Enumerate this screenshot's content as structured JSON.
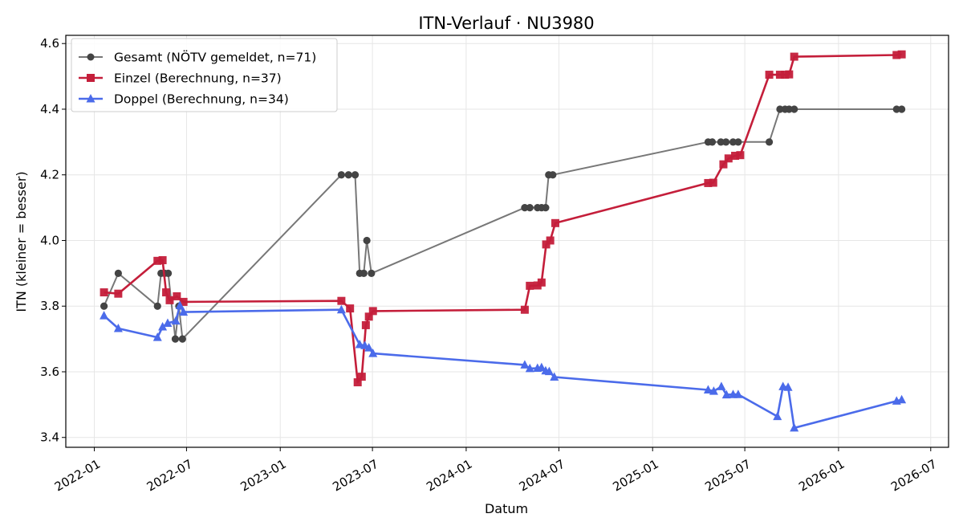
{
  "chart_data": {
    "type": "line",
    "title": "ITN-Verlauf · NU3980",
    "xlabel": "Datum",
    "ylabel": "ITN  (kleiner = besser)",
    "xlim": [
      "2021-11-06",
      "2026-08-05"
    ],
    "ylim": [
      3.37,
      4.625
    ],
    "grid": true,
    "legend_position": "top-left",
    "x_ticks": [
      "2022-01",
      "2022-07",
      "2023-01",
      "2023-07",
      "2024-01",
      "2024-07",
      "2025-01",
      "2025-07",
      "2026-01",
      "2026-07"
    ],
    "y_ticks": [
      "3.4",
      "3.6",
      "3.8",
      "4.0",
      "4.2",
      "4.4",
      "4.6"
    ],
    "series": [
      {
        "name": "Gesamt (NÖTV gemeldet, n=71)",
        "color": "#777777",
        "marker_color": "#444444",
        "marker": "circle",
        "points": [
          [
            "2022-01-20",
            3.8
          ],
          [
            "2022-02-17",
            3.9
          ],
          [
            "2022-05-05",
            3.8
          ],
          [
            "2022-05-12",
            3.9
          ],
          [
            "2022-05-19",
            3.9
          ],
          [
            "2022-05-26",
            3.9
          ],
          [
            "2022-06-09",
            3.7
          ],
          [
            "2022-06-16",
            3.8
          ],
          [
            "2022-06-23",
            3.7
          ],
          [
            "2023-05-01",
            4.2
          ],
          [
            "2023-05-15",
            4.2
          ],
          [
            "2023-05-28",
            4.2
          ],
          [
            "2023-06-06",
            3.9
          ],
          [
            "2023-06-14",
            3.9
          ],
          [
            "2023-06-20",
            4.0
          ],
          [
            "2023-06-29",
            3.9
          ],
          [
            "2024-04-25",
            4.1
          ],
          [
            "2024-05-05",
            4.1
          ],
          [
            "2024-05-20",
            4.1
          ],
          [
            "2024-05-28",
            4.1
          ],
          [
            "2024-06-05",
            4.1
          ],
          [
            "2024-06-11",
            4.2
          ],
          [
            "2024-06-19",
            4.2
          ],
          [
            "2025-04-20",
            4.3
          ],
          [
            "2025-04-28",
            4.3
          ],
          [
            "2025-05-15",
            4.3
          ],
          [
            "2025-05-25",
            4.3
          ],
          [
            "2025-06-08",
            4.3
          ],
          [
            "2025-06-18",
            4.3
          ],
          [
            "2025-08-18",
            4.3
          ],
          [
            "2025-09-08",
            4.4
          ],
          [
            "2025-09-18",
            4.4
          ],
          [
            "2025-09-26",
            4.4
          ],
          [
            "2025-10-06",
            4.4
          ],
          [
            "2026-04-25",
            4.4
          ],
          [
            "2026-05-05",
            4.4
          ]
        ]
      },
      {
        "name": "Einzel (Berechnung, n=37)",
        "color": "#C41E3A",
        "marker": "square",
        "points": [
          [
            "2022-01-20",
            3.842
          ],
          [
            "2022-02-17",
            3.838
          ],
          [
            "2022-05-05",
            3.938
          ],
          [
            "2022-05-15",
            3.94
          ],
          [
            "2022-05-22",
            3.842
          ],
          [
            "2022-05-29",
            3.818
          ],
          [
            "2022-06-12",
            3.83
          ],
          [
            "2022-06-25",
            3.813
          ],
          [
            "2023-05-01",
            3.816
          ],
          [
            "2023-05-18",
            3.793
          ],
          [
            "2023-06-02",
            3.568
          ],
          [
            "2023-06-10",
            3.585
          ],
          [
            "2023-06-18",
            3.742
          ],
          [
            "2023-06-24",
            3.768
          ],
          [
            "2023-07-02",
            3.785
          ],
          [
            "2024-04-25",
            3.789
          ],
          [
            "2024-05-05",
            3.862
          ],
          [
            "2024-05-20",
            3.863
          ],
          [
            "2024-05-28",
            3.872
          ],
          [
            "2024-06-06",
            3.988
          ],
          [
            "2024-06-14",
            4.0
          ],
          [
            "2024-06-24",
            4.053
          ],
          [
            "2025-04-20",
            4.175
          ],
          [
            "2025-04-30",
            4.176
          ],
          [
            "2025-05-20",
            4.232
          ],
          [
            "2025-05-30",
            4.25
          ],
          [
            "2025-06-12",
            4.258
          ],
          [
            "2025-06-22",
            4.26
          ],
          [
            "2025-08-18",
            4.505
          ],
          [
            "2025-09-08",
            4.505
          ],
          [
            "2025-09-18",
            4.505
          ],
          [
            "2025-09-26",
            4.506
          ],
          [
            "2025-10-06",
            4.56
          ],
          [
            "2026-04-25",
            4.565
          ],
          [
            "2026-05-05",
            4.567
          ]
        ]
      },
      {
        "name": "Doppel (Berechnung, n=34)",
        "color": "#4B6BEA",
        "marker": "triangle",
        "points": [
          [
            "2022-01-20",
            3.771
          ],
          [
            "2022-02-17",
            3.732
          ],
          [
            "2022-05-05",
            3.705
          ],
          [
            "2022-05-15",
            3.737
          ],
          [
            "2022-05-25",
            3.748
          ],
          [
            "2022-06-10",
            3.755
          ],
          [
            "2022-06-18",
            3.802
          ],
          [
            "2022-06-25",
            3.782
          ],
          [
            "2023-05-01",
            3.789
          ],
          [
            "2023-06-06",
            3.683
          ],
          [
            "2023-06-16",
            3.68
          ],
          [
            "2023-06-24",
            3.673
          ],
          [
            "2023-07-02",
            3.656
          ],
          [
            "2024-04-25",
            3.621
          ],
          [
            "2024-05-05",
            3.61
          ],
          [
            "2024-05-20",
            3.611
          ],
          [
            "2024-05-28",
            3.613
          ],
          [
            "2024-06-05",
            3.603
          ],
          [
            "2024-06-12",
            3.601
          ],
          [
            "2024-06-22",
            3.584
          ],
          [
            "2025-04-20",
            3.545
          ],
          [
            "2025-05-01",
            3.541
          ],
          [
            "2025-05-16",
            3.555
          ],
          [
            "2025-05-26",
            3.53
          ],
          [
            "2025-06-08",
            3.531
          ],
          [
            "2025-06-18",
            3.531
          ],
          [
            "2025-09-03",
            3.464
          ],
          [
            "2025-09-14",
            3.555
          ],
          [
            "2025-09-24",
            3.553
          ],
          [
            "2025-10-06",
            3.429
          ],
          [
            "2026-04-25",
            3.511
          ],
          [
            "2026-05-05",
            3.515
          ]
        ]
      }
    ]
  }
}
